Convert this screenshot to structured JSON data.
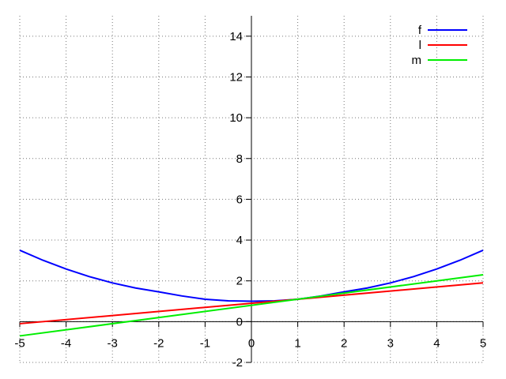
{
  "chart_data": {
    "type": "line",
    "title": "",
    "xlabel": "",
    "ylabel": "",
    "xlim": [
      -5,
      5
    ],
    "ylim": [
      -2,
      15
    ],
    "xticks": [
      -5,
      -4,
      -3,
      -2,
      -1,
      0,
      1,
      2,
      3,
      4,
      5
    ],
    "yticks": [
      -2,
      0,
      2,
      4,
      6,
      8,
      10,
      12,
      14
    ],
    "grid": true,
    "legend_position": "top-right",
    "series": [
      {
        "name": "f",
        "color": "#0000ff",
        "x": [
          -5,
          -4.5,
          -4,
          -3.5,
          -3,
          -2.5,
          -2,
          -1.5,
          -1,
          -0.5,
          0,
          0.5,
          1,
          1.5,
          2,
          2.5,
          3,
          3.5,
          4,
          4.5,
          5
        ],
        "y": [
          3.5,
          3.01,
          2.58,
          2.21,
          1.9,
          1.65,
          1.46,
          1.26,
          1.1,
          1.02,
          1.0,
          1.02,
          1.1,
          1.26,
          1.46,
          1.65,
          1.9,
          2.21,
          2.58,
          3.01,
          3.5
        ]
      },
      {
        "name": "l",
        "color": "#ff0000",
        "x": [
          -5,
          5
        ],
        "y": [
          -0.1,
          1.9
        ]
      },
      {
        "name": "m",
        "color": "#00ee00",
        "x": [
          -5,
          5
        ],
        "y": [
          -0.7,
          2.3
        ]
      }
    ]
  }
}
